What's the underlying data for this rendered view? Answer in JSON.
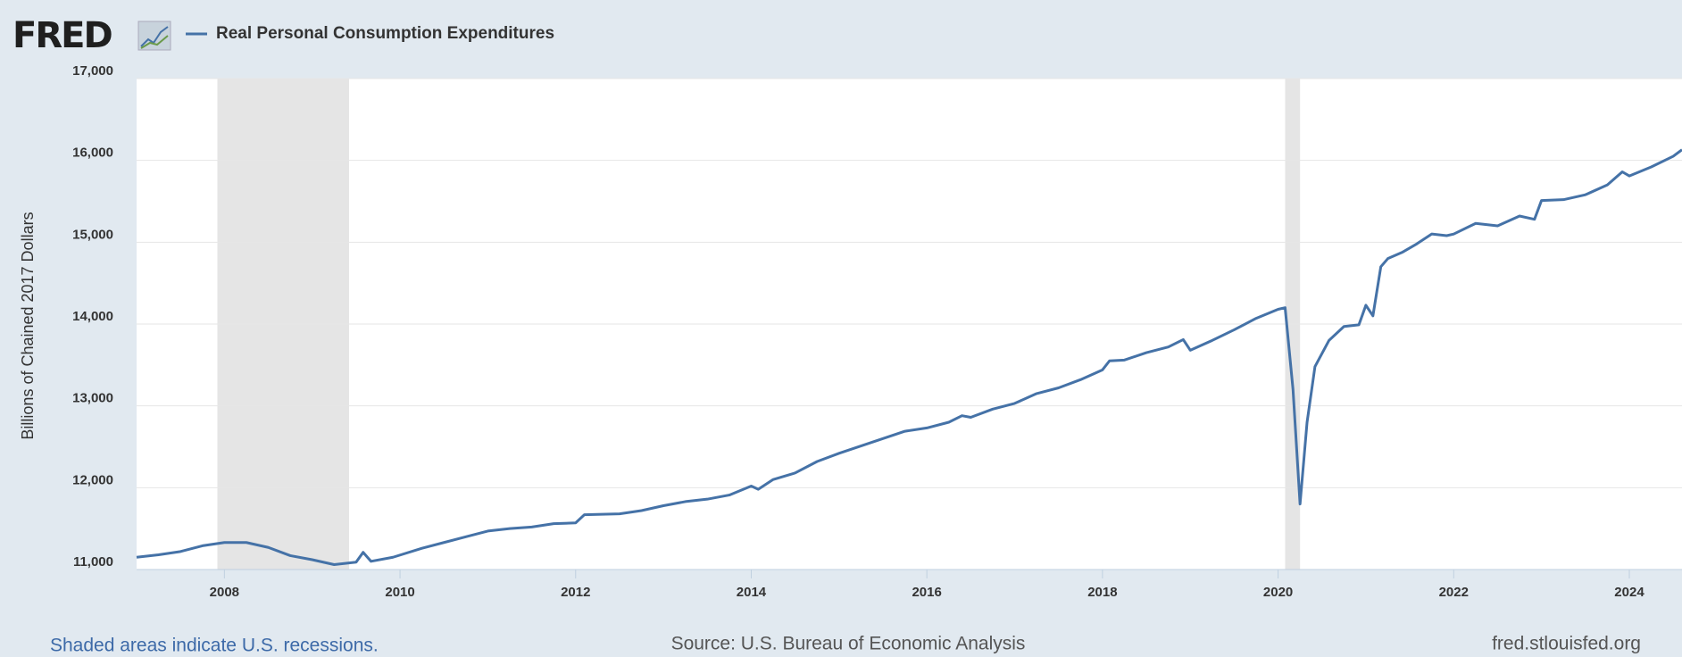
{
  "chart_data": {
    "type": "line",
    "logo": "FRED",
    "ylabel": "Billions of Chained 2017 Dollars",
    "note": "Shaded areas indicate U.S. recessions.",
    "source": "Source: U.S. Bureau of Economic Analysis",
    "site": "fred.stlouisfed.org",
    "recession_color": "#e5e5e5",
    "recessions": [
      [
        2007.92,
        2009.42
      ],
      [
        2020.08,
        2020.25
      ]
    ],
    "x": [
      2007.0,
      2007.25,
      2007.5,
      2007.75,
      2008.0,
      2008.25,
      2008.5,
      2008.75,
      2009.0,
      2009.25,
      2009.5,
      2009.58,
      2009.67,
      2009.92,
      2010.25,
      2010.5,
      2010.75,
      2011.0,
      2011.25,
      2011.5,
      2011.75,
      2012.0,
      2012.1,
      2012.5,
      2012.75,
      2013.0,
      2013.25,
      2013.5,
      2013.75,
      2014.0,
      2014.08,
      2014.25,
      2014.5,
      2014.75,
      2015.0,
      2015.25,
      2015.5,
      2015.75,
      2016.0,
      2016.25,
      2016.4,
      2016.5,
      2016.75,
      2017.0,
      2017.25,
      2017.5,
      2017.75,
      2018.0,
      2018.08,
      2018.25,
      2018.5,
      2018.75,
      2018.92,
      2019.0,
      2019.25,
      2019.5,
      2019.75,
      2020.0,
      2020.08,
      2020.17,
      2020.25,
      2020.33,
      2020.42,
      2020.58,
      2020.75,
      2020.92,
      2021.0,
      2021.08,
      2021.17,
      2021.25,
      2021.42,
      2021.58,
      2021.75,
      2021.92,
      2022.0,
      2022.25,
      2022.5,
      2022.75,
      2022.92,
      2023.0,
      2023.25,
      2023.5,
      2023.75,
      2023.92,
      2024.0,
      2024.25,
      2024.5,
      2024.6
    ],
    "series": [
      {
        "name": "Real Personal Consumption Expenditures",
        "color": "#4572a7",
        "values": [
          11150,
          11180,
          11220,
          11290,
          11330,
          11330,
          11270,
          11170,
          11120,
          11060,
          11090,
          11210,
          11100,
          11150,
          11260,
          11330,
          11400,
          11470,
          11500,
          11520,
          11560,
          11570,
          11670,
          11680,
          11720,
          11780,
          11830,
          11860,
          11910,
          12020,
          11980,
          12100,
          12180,
          12320,
          12420,
          12510,
          12600,
          12690,
          12730,
          12800,
          12880,
          12860,
          12960,
          13030,
          13150,
          13220,
          13320,
          13440,
          13550,
          13560,
          13650,
          13720,
          13810,
          13680,
          13800,
          13930,
          14070,
          14180,
          14200,
          13200,
          11800,
          12800,
          13480,
          13800,
          13970,
          13990,
          14230,
          14100,
          14700,
          14800,
          14880,
          14980,
          15100,
          15080,
          15100,
          15230,
          15200,
          15320,
          15280,
          15510,
          15520,
          15580,
          15700,
          15860,
          15810,
          15920,
          16050,
          16130
        ]
      }
    ],
    "xlim": [
      2007,
      2024.6
    ],
    "xticks": [
      2008,
      2010,
      2012,
      2014,
      2016,
      2018,
      2020,
      2022,
      2024
    ],
    "ylim": [
      11000,
      17000
    ],
    "yticks": [
      {
        "value": 11000,
        "label": "11,000"
      },
      {
        "value": 12000,
        "label": "12,000"
      },
      {
        "value": 13000,
        "label": "13,000"
      },
      {
        "value": 14000,
        "label": "14,000"
      },
      {
        "value": 15000,
        "label": "15,000"
      },
      {
        "value": 16000,
        "label": "16,000"
      },
      {
        "value": 17000,
        "label": "17,000"
      }
    ],
    "grid": true
  }
}
